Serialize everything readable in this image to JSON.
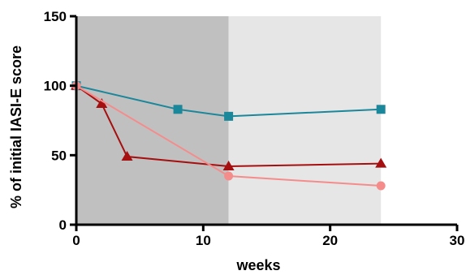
{
  "chart_data": {
    "type": "line",
    "xlabel": "weeks",
    "ylabel": "% of initial IASI-E score",
    "xlim": [
      0,
      30
    ],
    "ylim": [
      0,
      150
    ],
    "x_ticks": [
      0,
      10,
      20,
      30
    ],
    "y_ticks": [
      0,
      50,
      100,
      150
    ],
    "grid": false,
    "legend": "none",
    "shaded_regions": [
      {
        "x_start": 0,
        "x_end": 12,
        "color": "#c0c0c0"
      },
      {
        "x_start": 12,
        "x_end": 24,
        "color": "#e6e6e6"
      }
    ],
    "series": [
      {
        "marker": "square",
        "color": "#1b879a",
        "x": [
          0,
          8,
          12,
          24
        ],
        "y": [
          100,
          83,
          78,
          83
        ]
      },
      {
        "marker": "triangle",
        "color": "#a50f0f",
        "x": [
          0,
          2,
          4,
          12,
          24
        ],
        "y": [
          100,
          87,
          49,
          42,
          44
        ]
      },
      {
        "marker": "circle",
        "color": "#f58c8c",
        "x": [
          0,
          12,
          24
        ],
        "y": [
          100,
          35,
          28
        ]
      }
    ]
  }
}
